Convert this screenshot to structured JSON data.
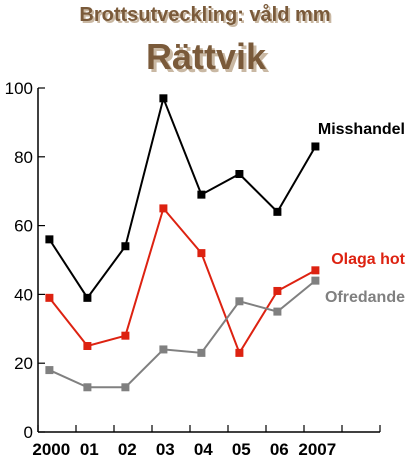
{
  "chart_data": {
    "type": "line",
    "title": "Brottsutveckling: våld mm",
    "subtitle": "Rättvik",
    "xlabel": "",
    "ylabel": "",
    "x_ticks": [
      "2000",
      "01",
      "02",
      "03",
      "04",
      "05",
      "06",
      "2007"
    ],
    "y_ticks": [
      "0",
      "20",
      "40",
      "60",
      "80",
      "100"
    ],
    "ylim": [
      0,
      100
    ],
    "grid": false,
    "x": [
      2000.3,
      2001.3,
      2002.3,
      2003.3,
      2004.3,
      2005.3,
      2006.3,
      2007.3
    ],
    "series": [
      {
        "name": "Misshandel",
        "color": "#000000",
        "values": [
          56,
          39,
          54,
          97,
          69,
          75,
          64,
          83
        ]
      },
      {
        "name": "Olaga hot",
        "color": "#dd2211",
        "values": [
          39,
          25,
          28,
          65,
          52,
          23,
          41,
          47
        ]
      },
      {
        "name": "Ofredande",
        "color": "#808080",
        "values": [
          18,
          13,
          13,
          24,
          23,
          38,
          35,
          44
        ]
      }
    ]
  },
  "colors": {
    "title": "#7a5a3a",
    "title_shadow": "#c9b8a3"
  }
}
